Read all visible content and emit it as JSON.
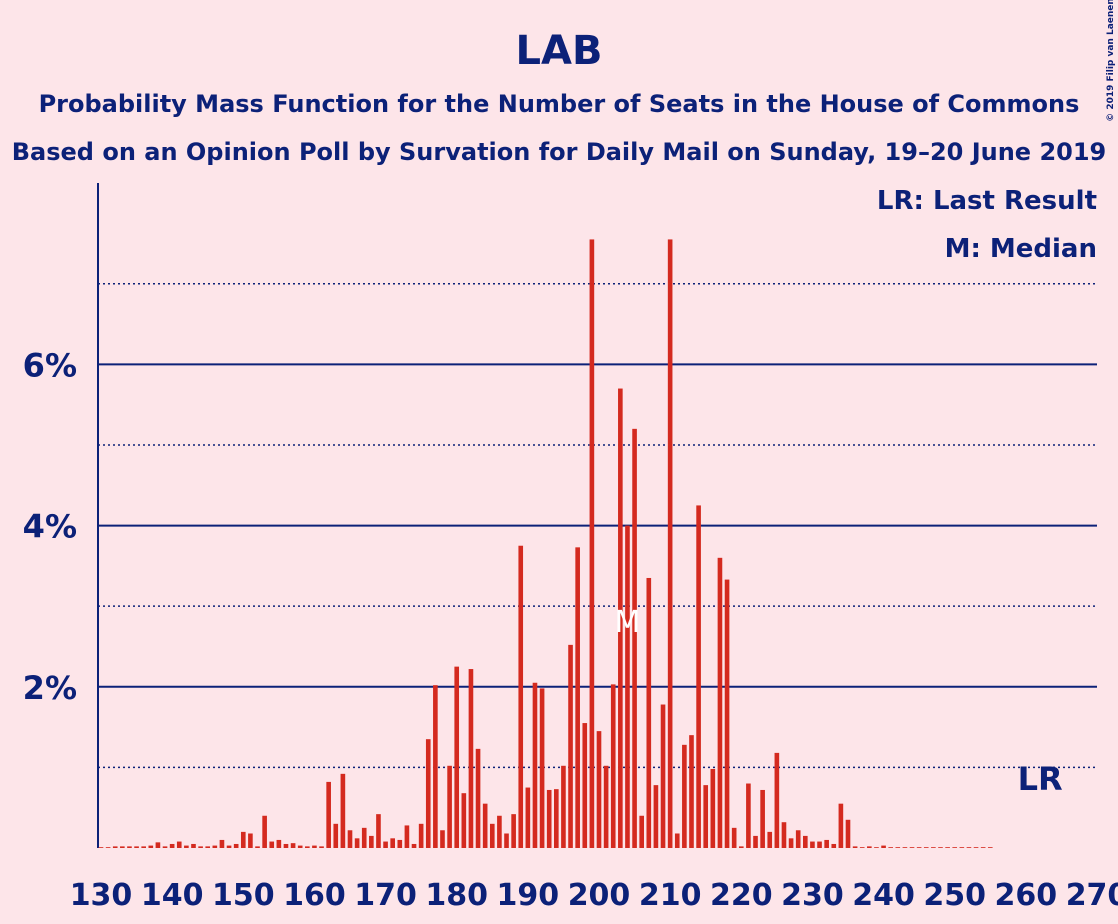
{
  "chart_data": {
    "type": "bar",
    "title": "LAB",
    "subtitle": [
      "Probability Mass Function for the Number of Seats in the House of Commons",
      "Based on an Opinion Poll by Survation for Daily Mail on Sunday, 19–20 June 2019"
    ],
    "legend": [
      "LR: Last Result",
      "M: Median"
    ],
    "credit": "© 2019 Filip van Laenen",
    "color": "#d42a1f",
    "x": [
      130,
      131,
      132,
      133,
      134,
      135,
      136,
      137,
      138,
      139,
      140,
      141,
      142,
      143,
      144,
      145,
      146,
      147,
      148,
      149,
      150,
      151,
      152,
      153,
      154,
      155,
      156,
      157,
      158,
      159,
      160,
      161,
      162,
      163,
      164,
      165,
      166,
      167,
      168,
      169,
      170,
      171,
      172,
      173,
      174,
      175,
      176,
      177,
      178,
      179,
      180,
      181,
      182,
      183,
      184,
      185,
      186,
      187,
      188,
      189,
      190,
      191,
      192,
      193,
      194,
      195,
      196,
      197,
      198,
      199,
      200,
      201,
      202,
      203,
      204,
      205,
      206,
      207,
      208,
      209,
      210,
      211,
      212,
      213,
      214,
      215,
      216,
      217,
      218,
      219,
      220,
      221,
      222,
      223,
      224,
      225,
      226,
      227,
      228,
      229,
      230,
      231,
      232,
      233,
      234,
      235,
      236,
      237,
      238,
      239,
      240,
      241,
      242,
      243,
      244,
      245,
      246,
      247,
      248,
      249,
      250,
      251,
      252,
      253,
      254,
      255,
      256,
      257,
      258,
      259,
      260,
      261,
      262,
      263,
      264,
      265,
      266,
      267,
      268,
      269,
      270
    ],
    "values": [
      0.01,
      0.01,
      0.02,
      0.02,
      0.02,
      0.02,
      0.02,
      0.03,
      0.07,
      0.02,
      0.05,
      0.08,
      0.03,
      0.05,
      0.02,
      0.02,
      0.03,
      0.1,
      0.03,
      0.05,
      0.2,
      0.18,
      0.02,
      0.4,
      0.08,
      0.1,
      0.05,
      0.06,
      0.03,
      0.02,
      0.03,
      0.02,
      0.82,
      0.3,
      0.92,
      0.22,
      0.12,
      0.25,
      0.15,
      0.42,
      0.08,
      0.12,
      0.1,
      0.28,
      0.05,
      0.3,
      1.35,
      2.02,
      0.22,
      1.02,
      2.25,
      0.68,
      2.22,
      1.23,
      0.55,
      0.3,
      0.4,
      0.18,
      0.42,
      3.75,
      0.75,
      2.05,
      1.98,
      0.72,
      0.73,
      1.02,
      2.52,
      3.73,
      1.55,
      7.55,
      1.45,
      1.02,
      2.03,
      5.7,
      4.0,
      5.2,
      0.4,
      3.35,
      0.78,
      1.78,
      7.55,
      0.18,
      1.28,
      1.4,
      4.25,
      0.78,
      0.98,
      3.6,
      3.33,
      0.25,
      0.02,
      0.8,
      0.15,
      0.72,
      0.2,
      1.18,
      0.32,
      0.12,
      0.22,
      0.15,
      0.08,
      0.08,
      0.1,
      0.05,
      0.55,
      0.35,
      0.02,
      0.01,
      0.02,
      0.01,
      0.03,
      0.01,
      0.01,
      0.01,
      0.01,
      0.01,
      0.01,
      0.01,
      0.01,
      0.01,
      0.01,
      0.01,
      0.01,
      0.01,
      0.01,
      0.01,
      0,
      0,
      0,
      0,
      0,
      0,
      0,
      0,
      0,
      0,
      0,
      0,
      0,
      0,
      0
    ],
    "xlim": [
      130,
      270
    ],
    "xticks": [
      130,
      140,
      150,
      160,
      170,
      180,
      190,
      200,
      210,
      220,
      230,
      240,
      250,
      260,
      270
    ],
    "ylim": [
      0,
      8.25
    ],
    "yticks": [
      {
        "value": 2,
        "label": "2%"
      },
      {
        "value": 4,
        "label": "4%"
      },
      {
        "value": 6,
        "label": "6%"
      }
    ],
    "minor_yticks": [
      1,
      3,
      5,
      7
    ],
    "grid": true,
    "annotations": [
      {
        "text": "M",
        "x": 204
      },
      {
        "text": "LR",
        "x": 262
      }
    ]
  }
}
